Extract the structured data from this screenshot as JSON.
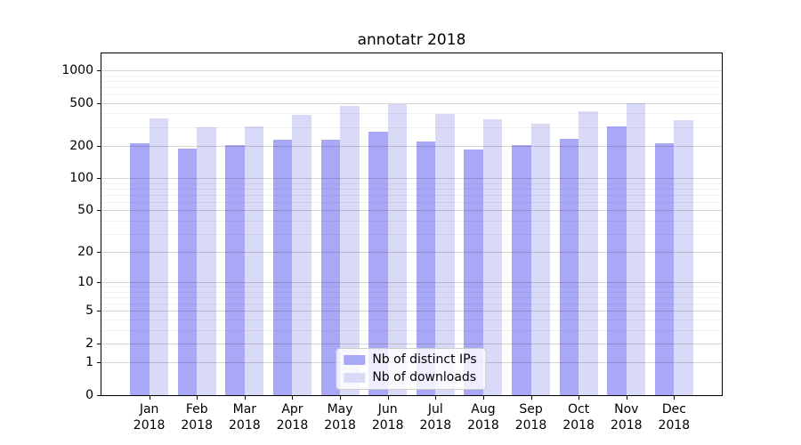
{
  "chart_data": {
    "type": "bar",
    "title": "annotatr 2018",
    "categories": [
      "Jan",
      "Feb",
      "Mar",
      "Apr",
      "May",
      "Jun",
      "Jul",
      "Aug",
      "Sep",
      "Oct",
      "Nov",
      "Dec"
    ],
    "x_year_label": "2018",
    "series": [
      {
        "name": "Nb of distinct IPs",
        "color": "#a8a8f7",
        "values": [
          210,
          190,
          205,
          226,
          229,
          269,
          218,
          184,
          202,
          233,
          304,
          210
        ]
      },
      {
        "name": "Nb of downloads",
        "color": "#d9d9f8",
        "values": [
          358,
          300,
          305,
          388,
          466,
          490,
          393,
          350,
          319,
          420,
          500,
          348
        ]
      }
    ],
    "yscale": "log1p",
    "ylim": [
      0,
      1435
    ],
    "yticks": [
      0,
      1,
      2,
      5,
      10,
      20,
      50,
      100,
      200,
      500,
      1000
    ],
    "yticks_minor": [
      3,
      4,
      6,
      7,
      8,
      9,
      30,
      40,
      60,
      70,
      80,
      90,
      300,
      400,
      600,
      700,
      800,
      900
    ],
    "grid": true,
    "legend_position": "lower center",
    "colors": {
      "axis": "#000000",
      "grid_major": "rgba(0,0,0,0.16)",
      "grid_minor": "rgba(0,0,0,0.055)",
      "plot_background": "#ffffff",
      "figure_background": "#ffffff",
      "legend_border": "#cccccc"
    }
  }
}
